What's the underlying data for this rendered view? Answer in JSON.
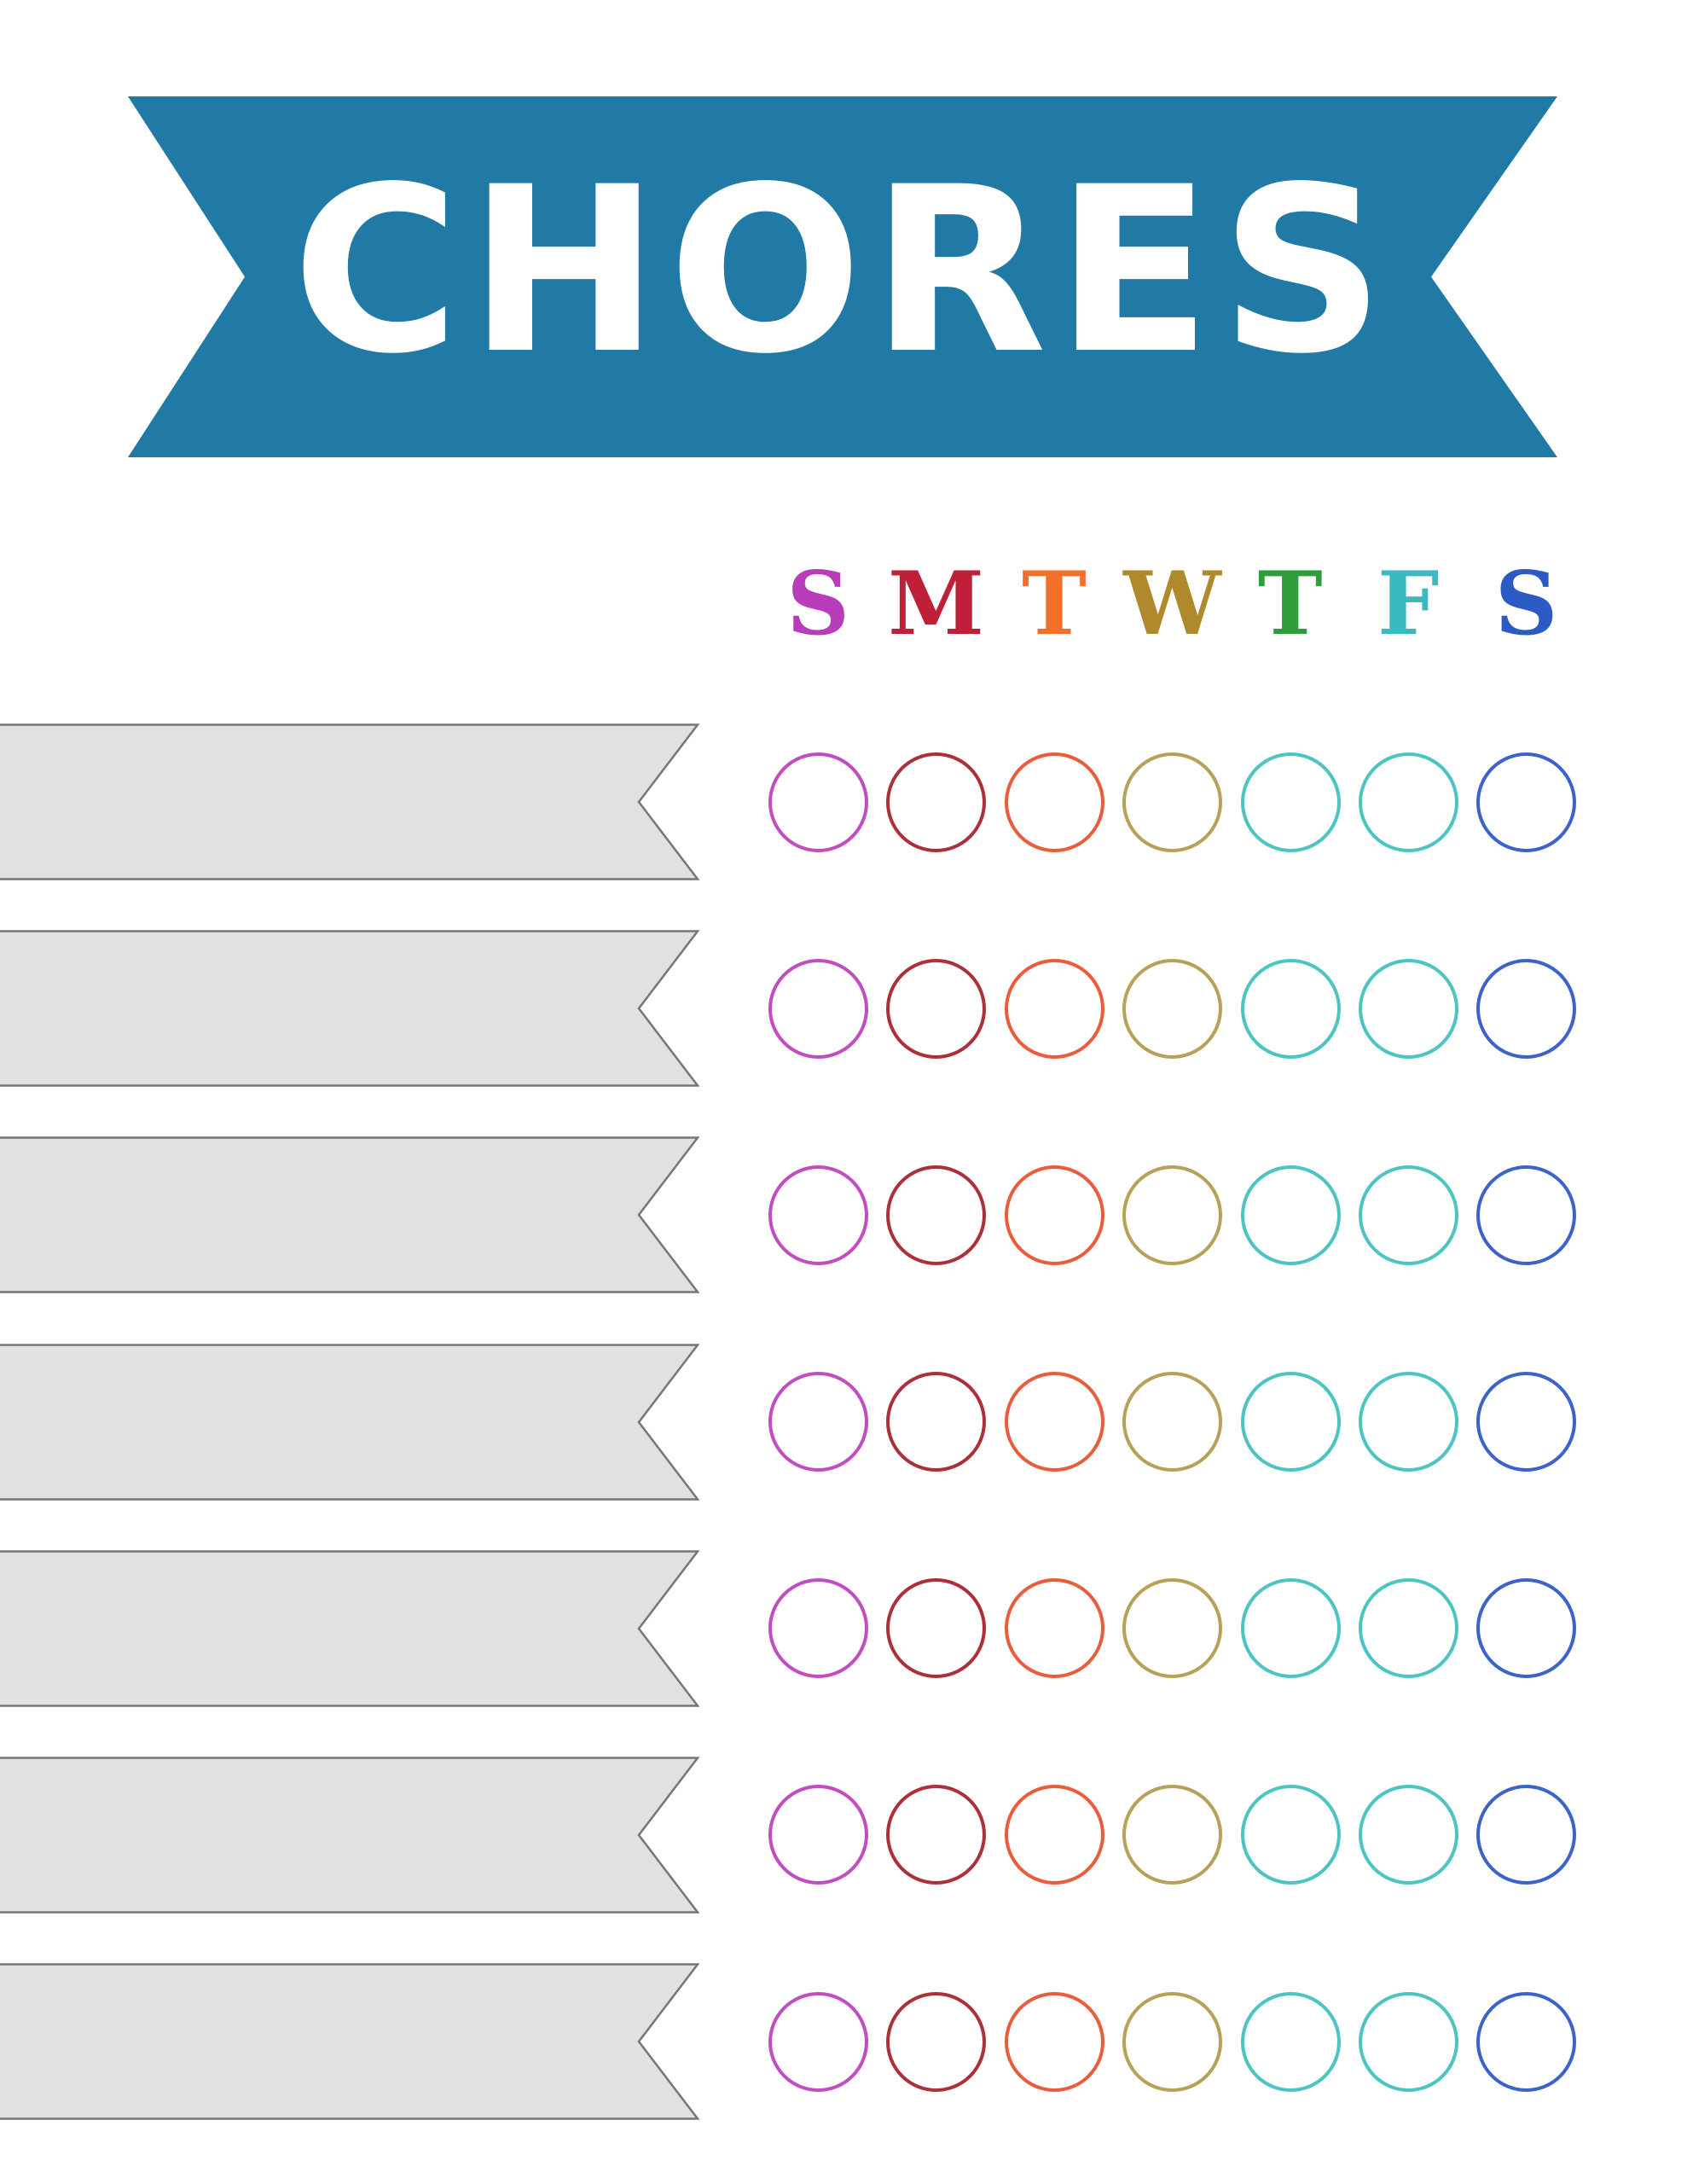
{
  "banner": {
    "label": "CHORES",
    "fill": "#2179A6",
    "text_color": "#FFFFFF"
  },
  "week": {
    "days": [
      {
        "name": "sunday",
        "letter": "S",
        "letter_color": "#B93DBA",
        "circle_color": "#C14EC1"
      },
      {
        "name": "monday",
        "letter": "M",
        "letter_color": "#C01F38",
        "circle_color": "#AD3039"
      },
      {
        "name": "tuesday",
        "letter": "T",
        "letter_color": "#F4702A",
        "circle_color": "#E95C3C"
      },
      {
        "name": "wednesday",
        "letter": "W",
        "letter_color": "#AE8A2D",
        "circle_color": "#B7A057"
      },
      {
        "name": "thursday",
        "letter": "T",
        "letter_color": "#2D9E3A",
        "circle_color": "#4CC4C4"
      },
      {
        "name": "friday",
        "letter": "F",
        "letter_color": "#3ABABF",
        "circle_color": "#4CC4C4"
      },
      {
        "name": "saturday",
        "letter": "S",
        "letter_color": "#2C5AC4",
        "circle_color": "#3B63C9"
      }
    ]
  },
  "chores": {
    "row_count": 7,
    "rows": [
      {
        "label": ""
      },
      {
        "label": ""
      },
      {
        "label": ""
      },
      {
        "label": ""
      },
      {
        "label": ""
      },
      {
        "label": ""
      },
      {
        "label": ""
      }
    ]
  },
  "chore_bar": {
    "fill": "#E1E1E1",
    "border_color": "#767676"
  }
}
